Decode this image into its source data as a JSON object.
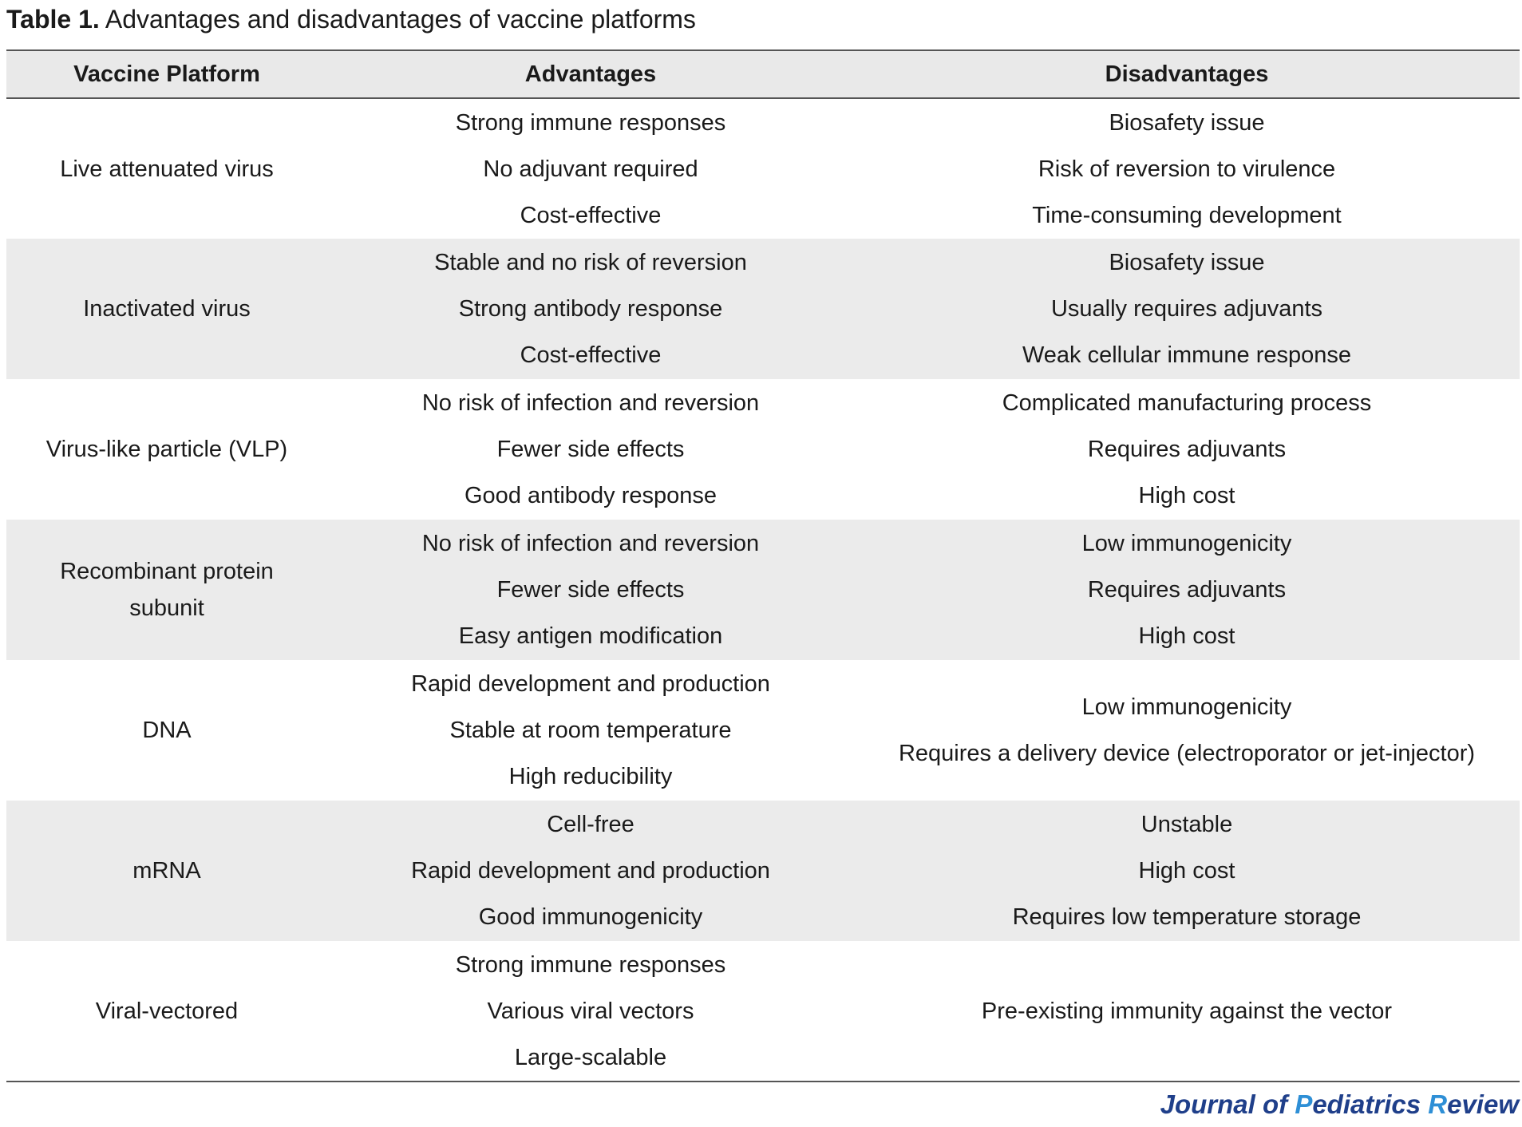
{
  "caption": {
    "label": "Table 1.",
    "text": " Advantages and disadvantages of vaccine platforms"
  },
  "table": {
    "headers": [
      "Vaccine Platform",
      "Advantages",
      "Disadvantages"
    ],
    "rows": [
      {
        "platform": "Live attenuated virus",
        "advantages": [
          "Strong immune responses",
          "No adjuvant required",
          "Cost-effective"
        ],
        "disadvantages": [
          "Biosafety issue",
          "Risk of reversion to virulence",
          "Time-consuming development"
        ]
      },
      {
        "platform": "Inactivated virus",
        "advantages": [
          "Stable and no risk of reversion",
          "Strong antibody response",
          "Cost-effective"
        ],
        "disadvantages": [
          "Biosafety issue",
          "Usually requires adjuvants",
          "Weak cellular immune response"
        ]
      },
      {
        "platform": "Virus-like particle (VLP)",
        "advantages": [
          "No risk of infection and reversion",
          "Fewer side effects",
          "Good antibody response"
        ],
        "disadvantages": [
          "Complicated manufacturing process",
          "Requires adjuvants",
          "High cost"
        ]
      },
      {
        "platform": "Recombinant protein subunit",
        "advantages": [
          "No risk of infection and reversion",
          "Fewer side effects",
          "Easy antigen modification"
        ],
        "disadvantages": [
          "Low immunogenicity",
          "Requires adjuvants",
          "High cost"
        ]
      },
      {
        "platform": "DNA",
        "advantages": [
          "Rapid development and production",
          "Stable at room temperature",
          "High reducibility"
        ],
        "disadvantages": [
          "Low immunogenicity",
          "Requires a delivery device (electroporator or jet-injector)"
        ]
      },
      {
        "platform": "mRNA",
        "advantages": [
          "Cell-free",
          "Rapid development and production",
          "Good immunogenicity"
        ],
        "disadvantages": [
          "Unstable",
          "High cost",
          "Requires low temperature storage"
        ]
      },
      {
        "platform": "Viral-vectored",
        "advantages": [
          "Strong immune responses",
          "Various viral vectors",
          "Large-scalable"
        ],
        "disadvantages": [
          "Pre-existing immunity against the vector"
        ]
      }
    ]
  },
  "footer": {
    "journal_part1": "Journal of ",
    "journal_p": "P",
    "journal_part2": "ediatrics ",
    "journal_r": "R",
    "journal_part3": "eview"
  },
  "colors": {
    "header_bg": "#e9e9e9",
    "row_shade": "#ebebeb",
    "rule": "#555555",
    "journal_dark": "#1f3f8a",
    "journal_accent": "#2e8fd6"
  }
}
